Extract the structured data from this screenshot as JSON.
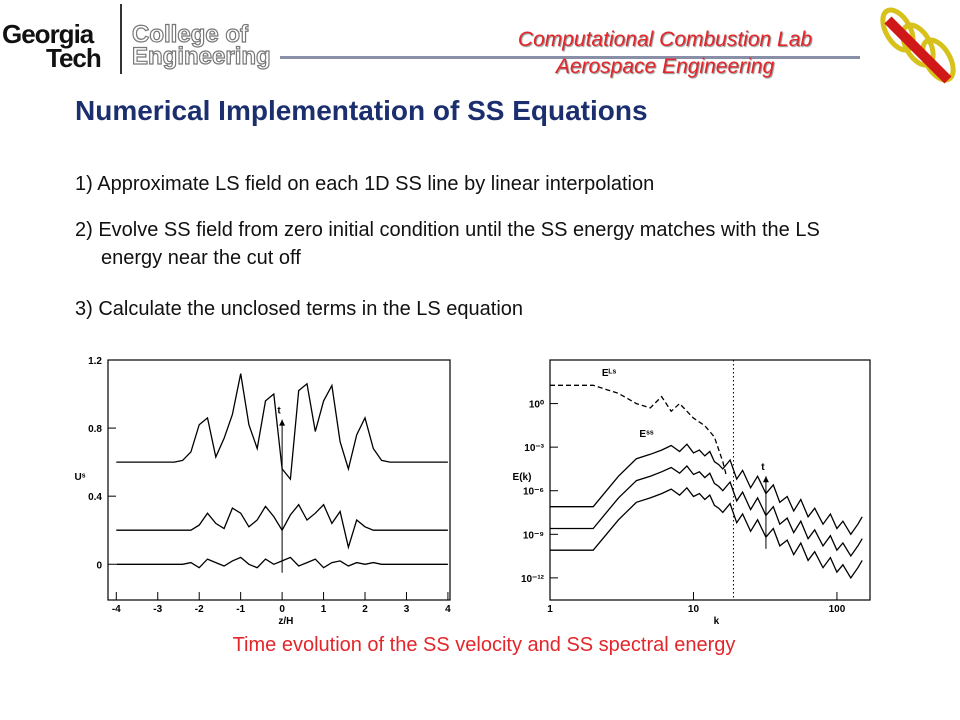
{
  "header": {
    "logo": [
      "Georgia",
      "Tech"
    ],
    "college": [
      "College of",
      "Engineering"
    ],
    "lab": [
      "Computational Combustion Lab",
      "Aerospace Engineering"
    ]
  },
  "title": "Numerical Implementation of SS Equations",
  "items": [
    "1) Approximate LS field on each 1D SS line by linear interpolation",
    "2) Evolve SS field from zero initial condition until the SS energy matches with the LS energy near the cut off",
    "3) Calculate the unclosed terms in the LS equation"
  ],
  "caption": "Time evolution of the SS velocity and SS spectral energy",
  "chart_data": [
    {
      "type": "line",
      "xlabel": "z/H",
      "ylabel": "Uˢ",
      "xlim": [
        -4.2,
        4.05
      ],
      "ylim": [
        -0.21,
        1.2
      ],
      "xticks": [
        -4,
        -3,
        -2,
        -1,
        0,
        1,
        2,
        3,
        4
      ],
      "yticks": [
        0,
        0.4,
        0.8,
        1.2
      ],
      "annotations": [
        {
          "text": "t",
          "x": 0,
          "y": 0.85,
          "from": -0.05
        }
      ],
      "x": [
        -4,
        -3.8,
        -3.6,
        -3.4,
        -3.2,
        -3,
        -2.8,
        -2.6,
        -2.4,
        -2.2,
        -2,
        -1.8,
        -1.6,
        -1.4,
        -1.2,
        -1,
        -0.8,
        -0.6,
        -0.4,
        -0.2,
        0,
        0.2,
        0.4,
        0.6,
        0.8,
        1,
        1.2,
        1.4,
        1.6,
        1.8,
        2,
        2.2,
        2.4,
        2.6,
        2.8,
        3,
        3.2,
        3.4,
        3.6,
        3.8,
        4
      ],
      "series": [
        {
          "color": "#000000",
          "values": [
            0.6,
            0.6,
            0.6,
            0.6,
            0.6,
            0.6,
            0.6,
            0.6,
            0.61,
            0.66,
            0.82,
            0.86,
            0.63,
            0.74,
            0.88,
            1.12,
            0.82,
            0.68,
            0.96,
            1.0,
            0.56,
            0.5,
            1.02,
            1.06,
            0.78,
            0.96,
            1.05,
            0.72,
            0.56,
            0.76,
            0.86,
            0.68,
            0.61,
            0.6,
            0.6,
            0.6,
            0.6,
            0.6,
            0.6,
            0.6,
            0.6
          ]
        },
        {
          "color": "#000000",
          "values": [
            0.2,
            0.2,
            0.2,
            0.2,
            0.2,
            0.2,
            0.2,
            0.2,
            0.2,
            0.2,
            0.23,
            0.3,
            0.24,
            0.21,
            0.33,
            0.3,
            0.22,
            0.26,
            0.34,
            0.28,
            0.2,
            0.29,
            0.35,
            0.26,
            0.3,
            0.35,
            0.24,
            0.31,
            0.1,
            0.26,
            0.22,
            0.2,
            0.2,
            0.2,
            0.2,
            0.2,
            0.2,
            0.2,
            0.2,
            0.2,
            0.2
          ]
        },
        {
          "color": "#000000",
          "values": [
            0,
            0,
            0,
            0,
            0,
            0,
            0,
            0,
            0,
            0.01,
            -0.02,
            0.03,
            0.01,
            -0.01,
            0.02,
            0.04,
            0,
            -0.02,
            0.03,
            0,
            0.02,
            0.04,
            -0.01,
            0.01,
            0.03,
            -0.02,
            0.01,
            0.02,
            -0.01,
            0.01,
            0,
            0.01,
            0,
            0,
            0,
            0,
            0,
            0,
            0,
            0,
            0
          ]
        }
      ]
    },
    {
      "type": "line",
      "xlabel": "k",
      "ylabel": "E(k)",
      "logx": true,
      "logy": true,
      "xlim": [
        1,
        170
      ],
      "ylim": [
        3e-14,
        1000
      ],
      "xticks": [
        1,
        10,
        100
      ],
      "yticks": [
        {
          "value": 1,
          "label": "10⁰"
        },
        {
          "value": 0.001,
          "label": "10⁻³"
        },
        {
          "value": 1e-06,
          "label": "10⁻⁶"
        },
        {
          "value": 1e-09,
          "label": "10⁻⁹"
        },
        {
          "value": 1e-12,
          "label": "10⁻¹²"
        }
      ],
      "vline": 19,
      "annotations": [
        {
          "text": "t",
          "x": 32,
          "y": 1e-05,
          "from": 1e-10
        },
        {
          "text": "Eᴸˢ",
          "x": 2.3,
          "y": 80
        },
        {
          "text": "Eˢˢ",
          "x": 4.2,
          "y": 0.005
        }
      ],
      "x": [
        1,
        2,
        3,
        4,
        5,
        6,
        7,
        8,
        9,
        10,
        11,
        12,
        13,
        14,
        15,
        16,
        18,
        20,
        22,
        25,
        28,
        32,
        36,
        40,
        45,
        50,
        56,
        63,
        70,
        80,
        90,
        100,
        110,
        125,
        140,
        150
      ],
      "series": [
        {
          "color": "#000000",
          "dash": true,
          "x": [
            1,
            2,
            3,
            4,
            5,
            6,
            7,
            8,
            10,
            12,
            14,
            16,
            17
          ],
          "values": [
            18,
            18,
            5,
            1,
            0.5,
            3,
            0.3,
            1,
            0.1,
            0.03,
            0.005,
            0.0001,
            1e-05
          ]
        },
        {
          "color": "#000000",
          "values": [
            8e-08,
            8e-08,
            1e-05,
            0.00016,
            0.00032,
            0.00063,
            0.0013,
            0.0005,
            0.0016,
            0.0004,
            0.00063,
            0.00025,
            0.0005,
            0.0001,
            6.3e-05,
            3.2e-05,
            0.00013,
            6.3e-06,
            2.5e-05,
            1.6e-06,
            1e-05,
            6.3e-07,
            2.5e-06,
            1.6e-07,
            4e-07,
            4e-08,
            2.5e-07,
            1.6e-08,
            6.3e-08,
            5e-09,
            2.5e-08,
            2.5e-09,
            8e-09,
            1e-09,
            5e-09,
            1.6e-08
          ]
        },
        {
          "color": "#000000",
          "values": [
            2.5e-09,
            2.5e-09,
            3.2e-07,
            5e-06,
            1e-05,
            2e-05,
            4e-05,
            1.6e-05,
            5e-05,
            1.3e-05,
            2e-05,
            8e-06,
            1.6e-05,
            3.2e-06,
            2e-06,
            1e-06,
            4e-06,
            2e-07,
            8e-07,
            5e-08,
            3.2e-07,
            2e-08,
            8e-08,
            5e-09,
            1.3e-08,
            1.3e-09,
            8e-09,
            5e-10,
            2e-09,
            1.6e-10,
            8e-10,
            8e-11,
            2.5e-10,
            3.2e-11,
            1.6e-10,
            5e-10
          ]
        },
        {
          "color": "#000000",
          "values": [
            8e-11,
            8e-11,
            1e-08,
            1.6e-07,
            3.2e-07,
            6.3e-07,
            1.3e-06,
            5e-07,
            1.6e-06,
            4e-07,
            6.3e-07,
            2.5e-07,
            5e-07,
            1e-07,
            6.3e-08,
            3.2e-08,
            1.3e-07,
            6.3e-09,
            2.5e-08,
            1.6e-09,
            1e-08,
            6.3e-10,
            2.5e-09,
            1.6e-10,
            4e-10,
            4e-11,
            2.5e-10,
            1.6e-11,
            6.3e-11,
            5e-12,
            2.5e-11,
            2.5e-12,
            8e-12,
            1e-12,
            5e-12,
            1.6e-11
          ]
        }
      ]
    }
  ]
}
